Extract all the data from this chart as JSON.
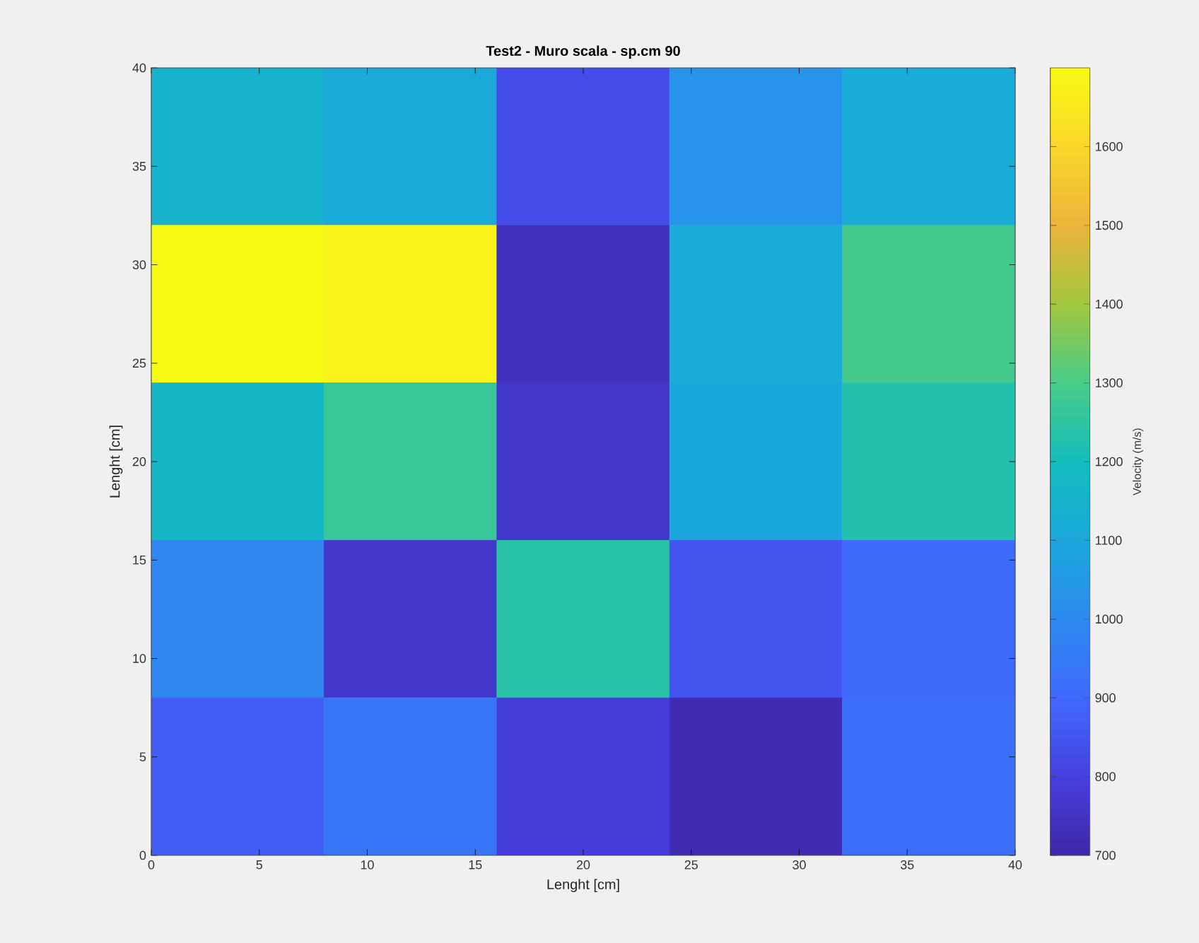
{
  "chart_data": {
    "type": "heatmap",
    "title": "Test2 - Muro scala - sp.cm 90",
    "xlabel": "Lenght [cm]",
    "ylabel": "Lenght [cm]",
    "clabel": "Velocity (m/s)",
    "xlim": [
      0,
      40
    ],
    "ylim": [
      0,
      40
    ],
    "xticks": [
      0,
      5,
      10,
      15,
      20,
      25,
      30,
      35,
      40
    ],
    "yticks": [
      0,
      5,
      10,
      15,
      20,
      25,
      30,
      35,
      40
    ],
    "cells": [
      [
        1150,
        1110,
        830,
        1030,
        1120
      ],
      [
        1700,
        1680,
        740,
        1120,
        1290
      ],
      [
        1170,
        1270,
        760,
        1100,
        1230
      ],
      [
        990,
        760,
        1240,
        850,
        905
      ],
      [
        870,
        940,
        790,
        720,
        920
      ]
    ],
    "clim": [
      700,
      1700
    ],
    "cticks": [
      700,
      800,
      900,
      1000,
      1100,
      1200,
      1300,
      1400,
      1500,
      1600
    ]
  }
}
